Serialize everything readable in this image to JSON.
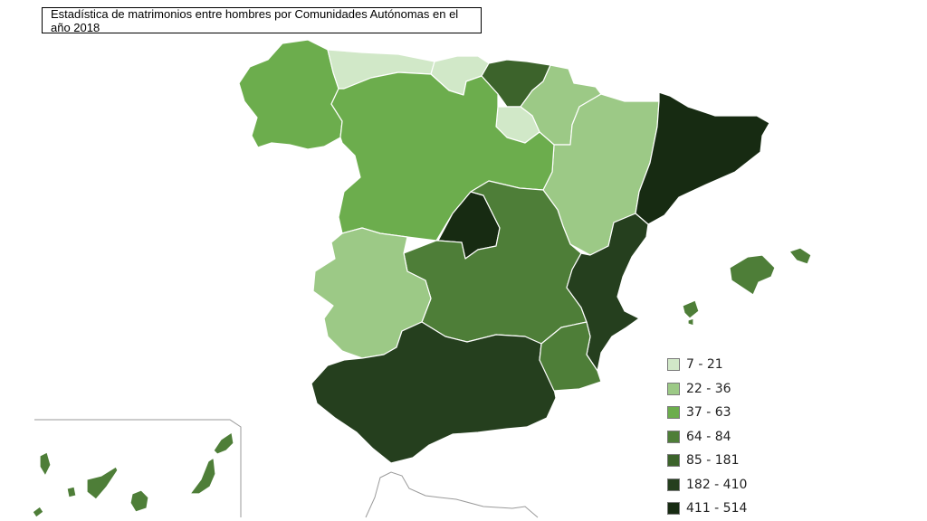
{
  "title": "Estadística de matrimonios entre hombres por Comunidades Autónomas en el año 2018",
  "legend": [
    {
      "label": "7 - 21",
      "color": "#d1e8c8"
    },
    {
      "label": "22 - 36",
      "color": "#9cc986"
    },
    {
      "label": "37 - 63",
      "color": "#6cad4d"
    },
    {
      "label": "64 - 84",
      "color": "#4e7e38"
    },
    {
      "label": "85 - 181",
      "color": "#3c632b"
    },
    {
      "label": "182 - 410",
      "color": "#253f1e"
    },
    {
      "label": "411 - 514",
      "color": "#172b12"
    }
  ],
  "regions": [
    {
      "name": "Galicia",
      "bin": 2
    },
    {
      "name": "Asturias",
      "bin": 0
    },
    {
      "name": "Cantabria",
      "bin": 0
    },
    {
      "name": "País Vasco",
      "bin": 4
    },
    {
      "name": "Navarra",
      "bin": 1
    },
    {
      "name": "La Rioja",
      "bin": 0
    },
    {
      "name": "Aragón",
      "bin": 1
    },
    {
      "name": "Cataluña",
      "bin": 6
    },
    {
      "name": "Castilla y León",
      "bin": 2
    },
    {
      "name": "Madrid",
      "bin": 6
    },
    {
      "name": "Castilla-La Mancha",
      "bin": 3
    },
    {
      "name": "Comunidad Valenciana",
      "bin": 5
    },
    {
      "name": "Extremadura",
      "bin": 1
    },
    {
      "name": "Andalucía",
      "bin": 5
    },
    {
      "name": "Murcia",
      "bin": 3
    },
    {
      "name": "Islas Baleares",
      "bin": 3
    },
    {
      "name": "Canarias",
      "bin": 3
    },
    {
      "name": "Ceuta",
      "bin": null
    },
    {
      "name": "Melilla",
      "bin": null
    }
  ]
}
